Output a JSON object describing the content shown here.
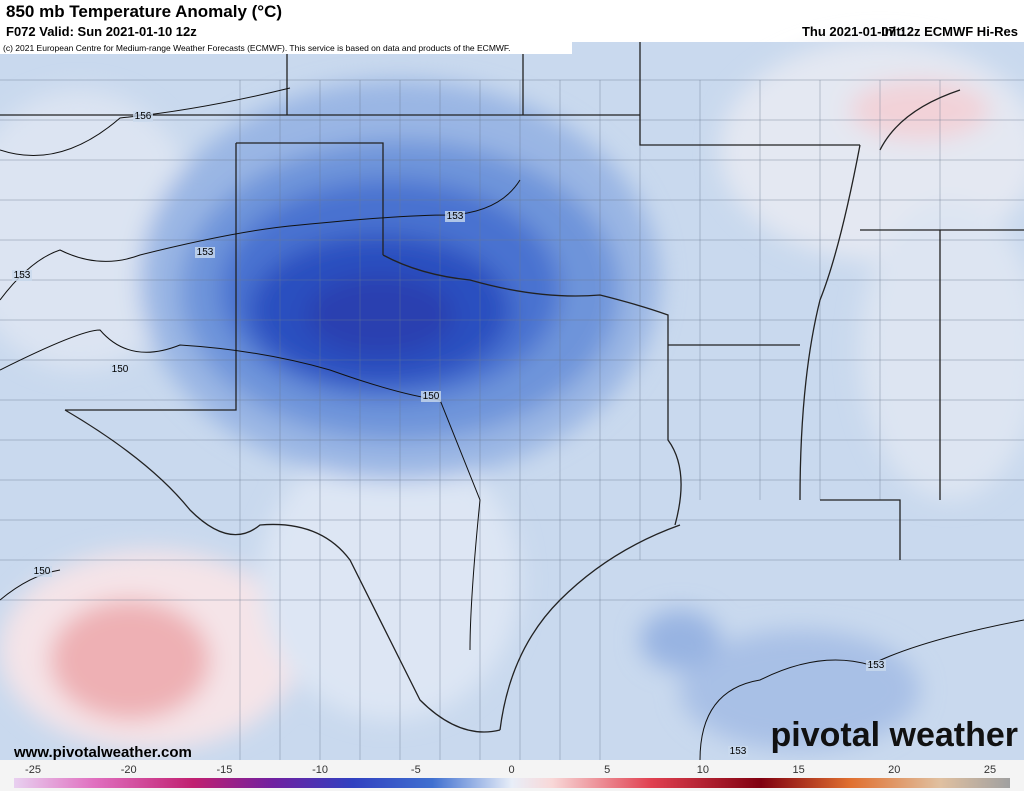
{
  "header": {
    "title": "850 mb Temperature Anomaly (°C)",
    "valid": "F072 Valid: Sun 2021-01-10 12z",
    "init": "Thu 2021-01-07 12z ECMWF Hi-Res",
    "init_prefix": "Init:",
    "copyright": "(c) 2021 European Centre for Medium-range Weather Forecasts (ECMWF). This service is based on data and products of the ECMWF."
  },
  "contour_labels": [
    156,
    153,
    153,
    153,
    150,
    150,
    150,
    153,
    153
  ],
  "footer": {
    "website": "www.pivotalweather.com",
    "logo": "pivotal weather"
  },
  "colorbar": {
    "ticks": [
      -25,
      -20,
      -15,
      -10,
      -5,
      0,
      5,
      10,
      15,
      20,
      25
    ]
  }
}
